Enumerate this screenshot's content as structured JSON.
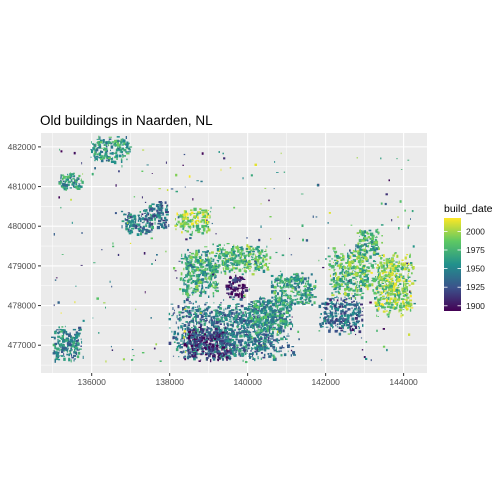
{
  "chart_data": {
    "type": "map",
    "title": "Old buildings in Naarden, NL",
    "xlabel": "",
    "ylabel": "",
    "xlim": [
      134700,
      144600
    ],
    "ylim": [
      476300,
      482350
    ],
    "x_ticks": [
      {
        "value": 136000,
        "label": "136000"
      },
      {
        "value": 138000,
        "label": "138000"
      },
      {
        "value": 140000,
        "label": "140000"
      },
      {
        "value": 142000,
        "label": "142000"
      },
      {
        "value": 144000,
        "label": "144000"
      }
    ],
    "y_ticks": [
      {
        "value": 477000,
        "label": "477000"
      },
      {
        "value": 478000,
        "label": "478000"
      },
      {
        "value": 479000,
        "label": "479000"
      },
      {
        "value": 480000,
        "label": "480000"
      },
      {
        "value": 481000,
        "label": "481000"
      },
      {
        "value": 482000,
        "label": "482000"
      }
    ],
    "grid": true,
    "fill_variable": "build_date",
    "legend": {
      "title": "build_date",
      "position": "right",
      "range": [
        1893,
        2018
      ],
      "breaks": [
        {
          "value": 2000,
          "label": "2000"
        },
        {
          "value": 1975,
          "label": "1975"
        },
        {
          "value": 1950,
          "label": "1950"
        },
        {
          "value": 1925,
          "label": "1925"
        },
        {
          "value": 1900,
          "label": "1900"
        }
      ],
      "colors": [
        "#440154",
        "#3b528b",
        "#21908c",
        "#5dc863",
        "#fde725"
      ]
    },
    "panel_background": "#ebebeb",
    "gridline_color": "#ffffff",
    "regions": [
      {
        "x": [
          135900,
          137000
        ],
        "y": [
          481600,
          482300
        ],
        "build_date": 1962
      },
      {
        "x": [
          135100,
          135800
        ],
        "y": [
          480900,
          481400
        ],
        "build_date": 1958
      },
      {
        "x": [
          137300,
          138000
        ],
        "y": [
          479900,
          480700
        ],
        "build_date": 1940
      },
      {
        "x": [
          138100,
          139100
        ],
        "y": [
          479800,
          480500
        ],
        "build_date": 1995
      },
      {
        "x": [
          138200,
          139300
        ],
        "y": [
          478200,
          479500
        ],
        "build_date": 1968
      },
      {
        "x": [
          139000,
          140600
        ],
        "y": [
          478800,
          479600
        ],
        "build_date": 1975
      },
      {
        "x": [
          139400,
          140000
        ],
        "y": [
          478200,
          478800
        ],
        "build_date": 1900
      },
      {
        "x": [
          137900,
          141200
        ],
        "y": [
          476600,
          478200
        ],
        "build_date": 1945
      },
      {
        "x": [
          138300,
          139600
        ],
        "y": [
          476600,
          477500
        ],
        "build_date": 1910
      },
      {
        "x": [
          139900,
          141100
        ],
        "y": [
          477300,
          478300
        ],
        "build_date": 1960
      },
      {
        "x": [
          140500,
          141800
        ],
        "y": [
          478000,
          478900
        ],
        "build_date": 1965
      },
      {
        "x": [
          141800,
          143000
        ],
        "y": [
          477300,
          478300
        ],
        "build_date": 1935
      },
      {
        "x": [
          142000,
          143200
        ],
        "y": [
          478200,
          479500
        ],
        "build_date": 1980
      },
      {
        "x": [
          143100,
          144300
        ],
        "y": [
          477700,
          479400
        ],
        "build_date": 1990
      },
      {
        "x": [
          134900,
          135800
        ],
        "y": [
          476600,
          477500
        ],
        "build_date": 1950
      },
      {
        "x": [
          136700,
          137600
        ],
        "y": [
          479800,
          480400
        ],
        "build_date": 1945
      },
      {
        "x": [
          142700,
          143400
        ],
        "y": [
          479300,
          480000
        ],
        "build_date": 1970
      }
    ]
  }
}
